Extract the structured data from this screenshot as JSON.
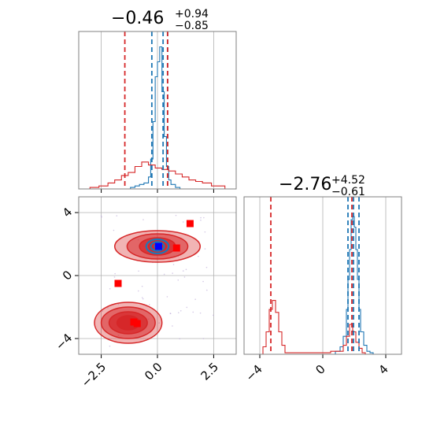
{
  "chart_data": {
    "type": "corner",
    "grid": true,
    "colors": {
      "blue": "#1f77b4",
      "red": "#d62728",
      "axis": "#808080",
      "grid": "#b0b0b0"
    },
    "panels": [
      {
        "id": "hist-param1",
        "type": "histogram",
        "title": {
          "median": "−0.46",
          "upper": "+0.94",
          "lower": "−0.85"
        },
        "xlim": [
          -3.5,
          3.5
        ],
        "quantile_lines": {
          "blue": [
            -0.25,
            0.25,
            0.45
          ],
          "red": [
            -1.45,
            0.45
          ]
        },
        "series": [
          {
            "name": "",
            "color": "blue",
            "bin_edges": [
              -1.2,
              -1.0,
              -0.8,
              -0.6,
              -0.4,
              -0.3,
              -0.2,
              -0.1,
              0.0,
              0.1,
              0.2,
              0.3,
              0.4,
              0.5,
              0.6,
              0.8,
              1.0
            ],
            "heights": [
              0.01,
              0.02,
              0.03,
              0.04,
              0.08,
              0.2,
              0.45,
              0.75,
              0.85,
              0.95,
              0.65,
              0.35,
              0.15,
              0.06,
              0.03,
              0.01
            ]
          },
          {
            "name": "",
            "color": "red",
            "bin_edges": [
              -3.0,
              -2.6,
              -2.2,
              -1.9,
              -1.6,
              -1.3,
              -1.0,
              -0.7,
              -0.4,
              -0.1,
              0.2,
              0.5,
              0.8,
              1.1,
              1.4,
              1.7,
              2.0,
              2.4,
              3.0
            ],
            "heights": [
              0.01,
              0.02,
              0.04,
              0.06,
              0.09,
              0.11,
              0.15,
              0.18,
              0.16,
              0.14,
              0.13,
              0.12,
              0.1,
              0.08,
              0.06,
              0.05,
              0.04,
              0.02
            ]
          }
        ]
      },
      {
        "id": "hist-param2",
        "type": "histogram",
        "title": {
          "median": "−2.76",
          "upper": "+4.52",
          "lower": "−0.61"
        },
        "xlim": [
          -5,
          5
        ],
        "xticks": [
          "−4",
          "0",
          "4"
        ],
        "quantile_lines": {
          "blue": [
            1.6,
            1.95,
            2.3
          ],
          "red": [
            -3.3,
            1.85
          ]
        },
        "series": [
          {
            "name": "",
            "color": "blue",
            "bin_edges": [
              0.8,
              1.1,
              1.3,
              1.5,
              1.6,
              1.7,
              1.8,
              1.9,
              2.0,
              2.1,
              2.2,
              2.3,
              2.4,
              2.6,
              2.8,
              3.0,
              3.2
            ],
            "heights": [
              0.02,
              0.05,
              0.12,
              0.3,
              0.5,
              0.7,
              0.9,
              0.92,
              0.85,
              0.7,
              0.5,
              0.3,
              0.15,
              0.06,
              0.02,
              0.01
            ]
          },
          {
            "name": "",
            "color": "red",
            "bin_edges": [
              -3.8,
              -3.6,
              -3.4,
              -3.2,
              -3.0,
              -2.8,
              -2.6,
              -2.4,
              -0.5,
              0.5,
              1.3,
              1.5,
              1.7,
              1.9,
              2.1,
              2.3,
              2.5,
              2.7
            ],
            "heights": [
              0.05,
              0.15,
              0.3,
              0.36,
              0.28,
              0.15,
              0.06,
              0.01,
              0.01,
              0.02,
              0.06,
              0.12,
              0.2,
              0.15,
              0.08,
              0.04,
              0.01
            ]
          }
        ]
      },
      {
        "id": "joint-param1-param2",
        "type": "contour",
        "xlim": [
          -3.5,
          3.5
        ],
        "ylim": [
          -5,
          5
        ],
        "xticks": [
          "−2.5",
          "0.0",
          "2.5"
        ],
        "yticks": [
          "−4",
          "0",
          "4"
        ],
        "blobs": [
          {
            "color": "red",
            "center": [
              -1.3,
              -3.0
            ],
            "radii": [
              [
                3.0,
                1.3
              ],
              [
                2.4,
                1.0
              ],
              [
                1.7,
                0.7
              ],
              [
                1.0,
                0.45
              ]
            ]
          },
          {
            "color": "red",
            "center": [
              0.0,
              1.85
            ],
            "radii": [
              [
                3.8,
                1.0
              ],
              [
                2.7,
                0.8
              ],
              [
                1.6,
                0.55
              ],
              [
                0.8,
                0.35
              ]
            ]
          },
          {
            "color": "blue",
            "center": [
              0.0,
              1.85
            ],
            "radii": [
              [
                1.0,
                0.45
              ],
              [
                0.6,
                0.28
              ],
              [
                0.25,
                0.12
              ]
            ]
          }
        ],
        "markers": [
          {
            "color": "red",
            "points": [
              [
                1.45,
                3.3
              ],
              [
                -1.75,
                -0.5
              ],
              [
                0.85,
                1.75
              ],
              [
                -1.05,
                -2.95
              ],
              [
                -0.9,
                -3.05
              ]
            ]
          },
          {
            "color": "blue",
            "points": [
              [
                0.05,
                1.85
              ]
            ]
          }
        ]
      }
    ]
  }
}
